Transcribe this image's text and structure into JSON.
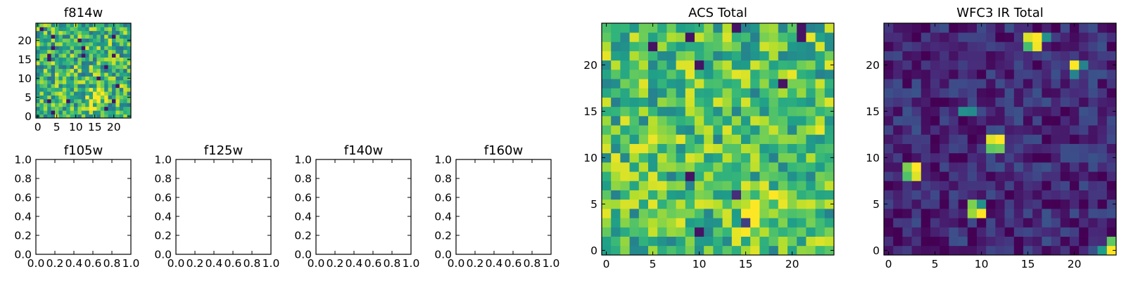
{
  "chart_data": [
    {
      "type": "heatmap",
      "title": "f814w",
      "grid_size": [
        25,
        25
      ],
      "xlim": [
        0,
        24
      ],
      "ylim": [
        0,
        24
      ],
      "xticks": [
        0,
        5,
        10,
        15,
        20
      ],
      "yticks": [
        0,
        5,
        10,
        15,
        20
      ],
      "origin": "lower",
      "colormap": "viridis",
      "value_range": [
        0,
        1
      ],
      "features": [
        {
          "center": [
            15.5,
            5
          ],
          "radius": 4,
          "amplitude": 0.35
        }
      ],
      "noise": {
        "mean": 0.66,
        "spread": 0.3,
        "seed": 7
      }
    },
    {
      "type": "empty",
      "title": "f105w",
      "xlim": [
        0.0,
        1.0
      ],
      "ylim": [
        0.0,
        1.0
      ],
      "xticks": [
        "0.0",
        "0.2",
        "0.4",
        "0.6",
        "0.8",
        "1.0"
      ],
      "yticks": [
        "0.0",
        "0.2",
        "0.4",
        "0.6",
        "0.8",
        "1.0"
      ]
    },
    {
      "type": "empty",
      "title": "f125w",
      "xlim": [
        0.0,
        1.0
      ],
      "ylim": [
        0.0,
        1.0
      ],
      "xticks": [
        "0.0",
        "0.2",
        "0.4",
        "0.6",
        "0.8",
        "1.0"
      ],
      "yticks": [
        "0.0",
        "0.2",
        "0.4",
        "0.6",
        "0.8",
        "1.0"
      ]
    },
    {
      "type": "empty",
      "title": "f140w",
      "xlim": [
        0.0,
        1.0
      ],
      "ylim": [
        0.0,
        1.0
      ],
      "xticks": [
        "0.0",
        "0.2",
        "0.4",
        "0.6",
        "0.8",
        "1.0"
      ],
      "yticks": [
        "0.0",
        "0.2",
        "0.4",
        "0.6",
        "0.8",
        "1.0"
      ]
    },
    {
      "type": "empty",
      "title": "f160w",
      "xlim": [
        0.0,
        1.0
      ],
      "ylim": [
        0.0,
        1.0
      ],
      "xticks": [
        "0.0",
        "0.2",
        "0.4",
        "0.6",
        "0.8",
        "1.0"
      ],
      "yticks": [
        "0.0",
        "0.2",
        "0.4",
        "0.6",
        "0.8",
        "1.0"
      ]
    },
    {
      "type": "heatmap",
      "title": "ACS Total",
      "grid_size": [
        25,
        25
      ],
      "xlim": [
        0,
        24
      ],
      "ylim": [
        0,
        24
      ],
      "xticks": [
        0,
        5,
        10,
        15,
        20
      ],
      "yticks": [
        0,
        5,
        10,
        15,
        20
      ],
      "origin": "lower",
      "colormap": "viridis",
      "value_range": [
        0,
        1
      ],
      "features": [
        {
          "center": [
            16.5,
            4.5
          ],
          "radius": 4,
          "amplitude": 0.3
        }
      ],
      "noise": {
        "mean": 0.7,
        "spread": 0.27,
        "seed": 11
      }
    },
    {
      "type": "heatmap",
      "title": "WFC3 IR Total",
      "grid_size": [
        25,
        25
      ],
      "xlim": [
        0,
        24
      ],
      "ylim": [
        0,
        24
      ],
      "xticks": [
        0,
        5,
        10,
        15,
        20
      ],
      "yticks": [
        0,
        5,
        10,
        15,
        20
      ],
      "origin": "lower",
      "colormap": "viridis",
      "value_range": [
        0,
        1
      ],
      "bright_pixels": [
        {
          "x": 15,
          "y": 23,
          "value": 0.95
        },
        {
          "x": 16,
          "y": 23,
          "value": 1.0
        },
        {
          "x": 16,
          "y": 22,
          "value": 0.98
        },
        {
          "x": 15,
          "y": 22,
          "value": 0.7
        },
        {
          "x": 17,
          "y": 23,
          "value": 0.5
        },
        {
          "x": 20,
          "y": 20,
          "value": 1.0
        },
        {
          "x": 21,
          "y": 20,
          "value": 0.45
        },
        {
          "x": 20,
          "y": 19,
          "value": 0.45
        },
        {
          "x": 8,
          "y": 15,
          "value": 0.5
        },
        {
          "x": 9,
          "y": 15,
          "value": 0.48
        },
        {
          "x": 11,
          "y": 12,
          "value": 0.95
        },
        {
          "x": 12,
          "y": 12,
          "value": 1.0
        },
        {
          "x": 11,
          "y": 11,
          "value": 0.75
        },
        {
          "x": 12,
          "y": 11,
          "value": 0.78
        },
        {
          "x": 2,
          "y": 9,
          "value": 0.8
        },
        {
          "x": 3,
          "y": 9,
          "value": 1.0
        },
        {
          "x": 2,
          "y": 8,
          "value": 0.72
        },
        {
          "x": 3,
          "y": 8,
          "value": 0.95
        },
        {
          "x": 9,
          "y": 5,
          "value": 0.8
        },
        {
          "x": 10,
          "y": 5,
          "value": 0.5
        },
        {
          "x": 9,
          "y": 4,
          "value": 0.85
        },
        {
          "x": 10,
          "y": 4,
          "value": 1.0
        },
        {
          "x": 24,
          "y": 1,
          "value": 0.75
        },
        {
          "x": 24,
          "y": 0,
          "value": 1.0
        },
        {
          "x": 23,
          "y": 0,
          "value": 0.55
        }
      ],
      "noise": {
        "mean": 0.12,
        "spread": 0.14,
        "seed": 23
      }
    }
  ]
}
